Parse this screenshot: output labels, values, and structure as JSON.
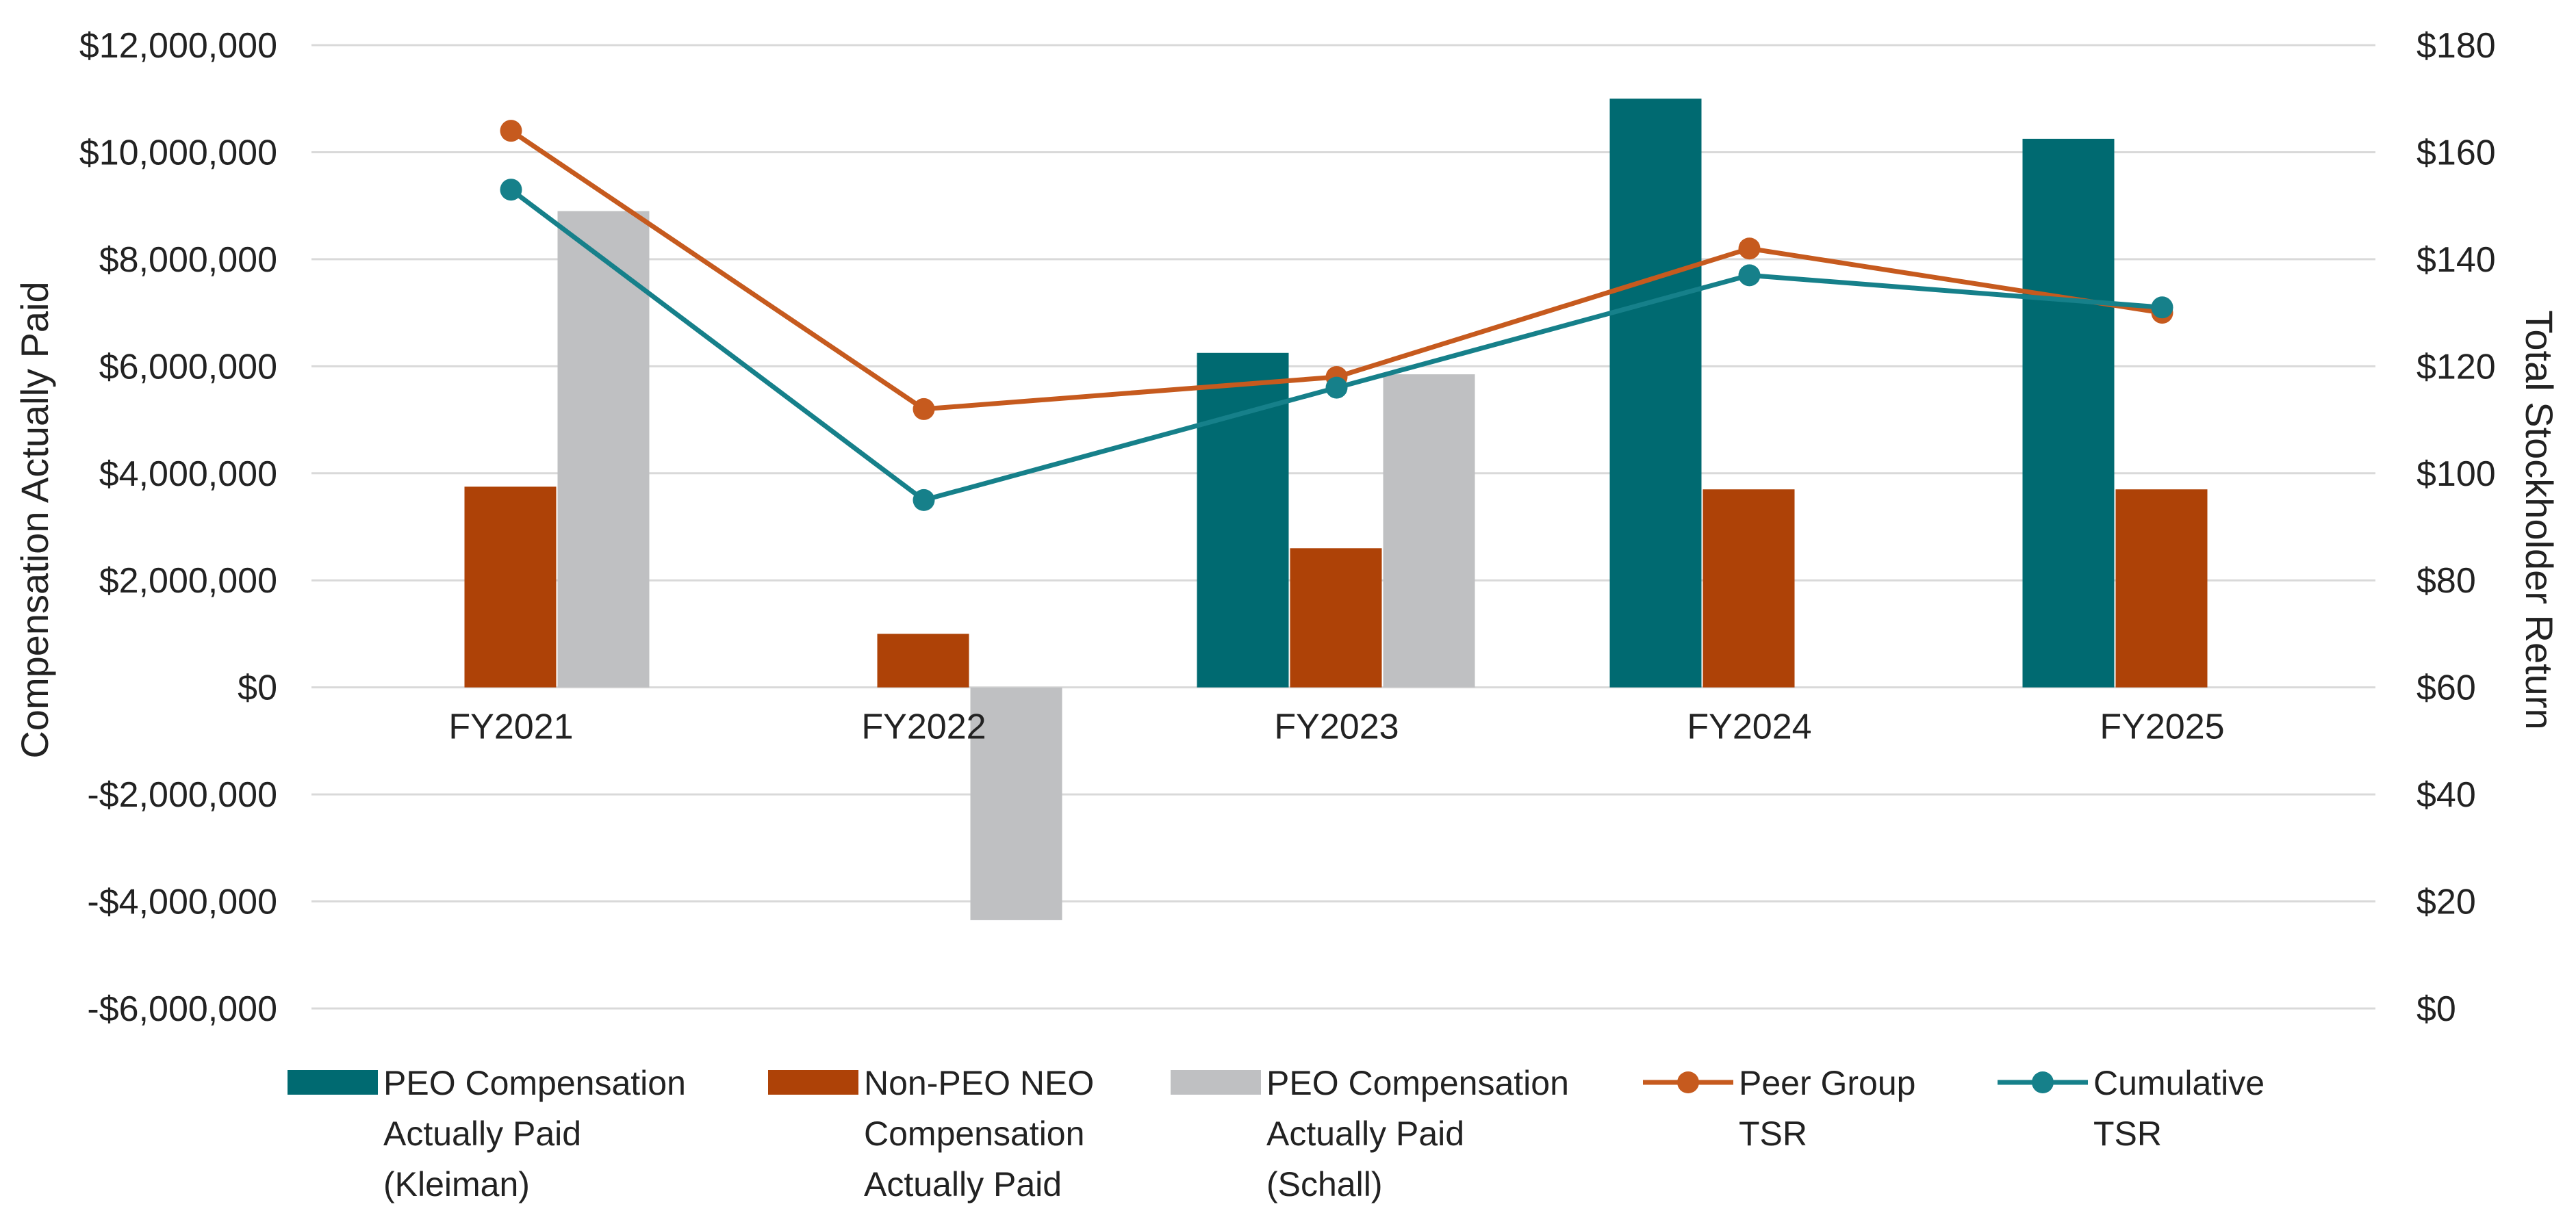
{
  "chart_data": {
    "type": "bar",
    "categories": [
      "FY2021",
      "FY2022",
      "FY2023",
      "FY2024",
      "FY2025"
    ],
    "y_left": {
      "label": "Compensation Actually Paid",
      "range": [
        -6000000,
        12000000
      ],
      "ticks": [
        12000000,
        10000000,
        8000000,
        6000000,
        4000000,
        2000000,
        0,
        -2000000,
        -4000000,
        -6000000
      ],
      "tick_labels": [
        "$12,000,000",
        "$10,000,000",
        "$8,000,000",
        "$6,000,000",
        "$4,000,000",
        "$2,000,000",
        "$0",
        "-$2,000,000",
        "-$4,000,000",
        "-$6,000,000"
      ]
    },
    "y_right": {
      "label": "Total Stockholder Return",
      "range": [
        0,
        180
      ],
      "ticks": [
        180,
        160,
        140,
        120,
        100,
        80,
        60,
        40,
        20,
        0
      ],
      "tick_labels": [
        "$180",
        "$160",
        "$140",
        "$120",
        "$100",
        "$80",
        "$60",
        "$40",
        "$20",
        "$0"
      ]
    },
    "bar_series": [
      {
        "key": "kleiman",
        "legend_lines": [
          "PEO Compensation",
          "Actually Paid",
          "(Kleiman)"
        ],
        "color": "#006a71",
        "values": [
          null,
          null,
          6250000,
          11000000,
          10250000
        ]
      },
      {
        "key": "non_peo",
        "legend_lines": [
          "Non-PEO NEO",
          "Compensation",
          "Actually Paid"
        ],
        "color": "#ae4207",
        "values": [
          3750000,
          1000000,
          2600000,
          3700000,
          3700000
        ]
      },
      {
        "key": "schall",
        "legend_lines": [
          "PEO Compensation",
          "Actually Paid",
          "(Schall)"
        ],
        "color": "#bfc0c2",
        "values": [
          8900000,
          -4350000,
          5850000,
          null,
          null
        ]
      }
    ],
    "line_series": [
      {
        "key": "peer",
        "legend_lines": [
          "Peer Group",
          "TSR"
        ],
        "color": "#c65a1e",
        "axis": "right",
        "values": [
          164,
          112,
          118,
          142,
          130
        ]
      },
      {
        "key": "cumulative",
        "legend_lines": [
          "Cumulative",
          "TSR"
        ],
        "color": "#16808a",
        "axis": "right",
        "values": [
          153,
          95,
          116,
          137,
          131
        ]
      }
    ],
    "grid": true,
    "legend_position": "bottom"
  }
}
